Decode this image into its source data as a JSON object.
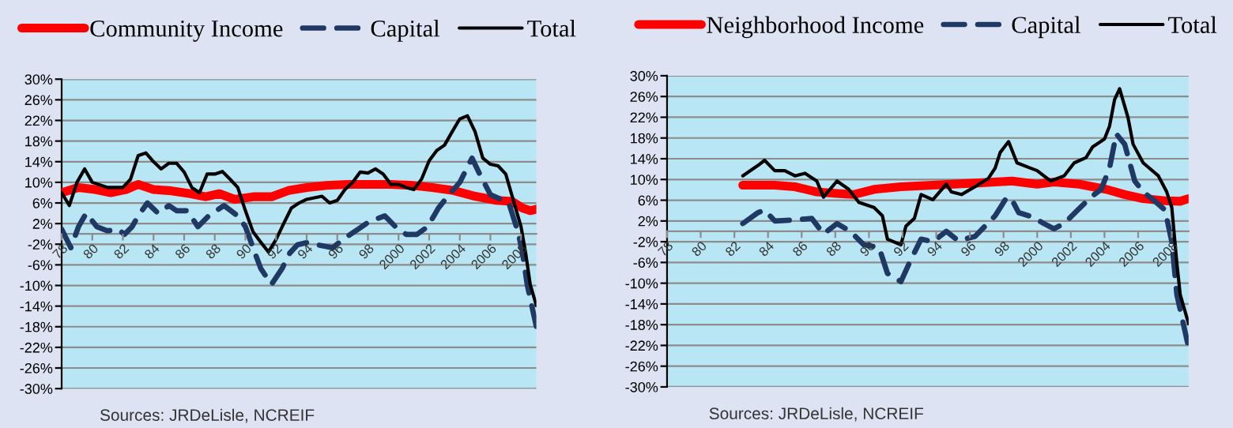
{
  "chart_data": [
    {
      "type": "line",
      "legend": "top",
      "grid": "y",
      "xlim": [
        1978,
        2009
      ],
      "ylim": [
        -30,
        30
      ],
      "xticks": [
        {
          "value": 1978,
          "label": "78"
        },
        {
          "value": 1980,
          "label": "80"
        },
        {
          "value": 1982,
          "label": "82"
        },
        {
          "value": 1984,
          "label": "84"
        },
        {
          "value": 1986,
          "label": "86"
        },
        {
          "value": 1988,
          "label": "88"
        },
        {
          "value": 1990,
          "label": "90"
        },
        {
          "value": 1992,
          "label": "92"
        },
        {
          "value": 1994,
          "label": "94"
        },
        {
          "value": 1996,
          "label": "96"
        },
        {
          "value": 1998,
          "label": "98"
        },
        2000,
        2002,
        2004,
        2006,
        2008
      ],
      "yticks": [
        {
          "value": 30,
          "label": "30%"
        },
        {
          "value": 26,
          "label": "26%"
        },
        {
          "value": 22,
          "label": "22%"
        },
        {
          "value": 18,
          "label": "18%"
        },
        {
          "value": 14,
          "label": "14%"
        },
        {
          "value": 10,
          "label": "10%"
        },
        {
          "value": 6,
          "label": "6%"
        },
        {
          "value": 2,
          "label": "2%"
        },
        {
          "value": -2,
          "label": "-2%"
        },
        {
          "value": -6,
          "label": "-6%"
        },
        {
          "value": -10,
          "label": "-10%"
        },
        {
          "value": -14,
          "label": "-14%"
        },
        {
          "value": -18,
          "label": "-18%"
        },
        {
          "value": -22,
          "label": "-22%"
        },
        {
          "value": -26,
          "label": "-26%"
        },
        {
          "value": -30,
          "label": "-30%"
        }
      ],
      "annotations": [
        "Sources: JRDeLisle, NCREIF"
      ],
      "series": [
        {
          "name": "Community Income",
          "color": "#ff0000",
          "line_style": "solid",
          "x": [
            1978.0,
            1979.1,
            1980.2,
            1981.2,
            1982.2,
            1983.0,
            1984.0,
            1985.0,
            1986.4,
            1987.4,
            1988.3,
            1989.3,
            1990.5,
            1991.7,
            1992.8,
            1994.0,
            1995.3,
            1996.7,
            1998.1,
            1999.5,
            2000.9,
            2002.2,
            2003.6,
            2005.0,
            2006.4,
            2007.4,
            2008.1,
            2008.6,
            2009.0
          ],
          "values": [
            8,
            9,
            8.6,
            8,
            8.6,
            9.6,
            8.6,
            8.4,
            7.8,
            7.2,
            7.8,
            6.7,
            7.2,
            7.2,
            8.4,
            9,
            9.4,
            9.6,
            9.6,
            9.6,
            9.4,
            9,
            8.4,
            7.3,
            6.5,
            6.3,
            5,
            4.5,
            4.8
          ]
        },
        {
          "name": "Capital",
          "color": "#1f3864",
          "line_style": "dashed",
          "x": [
            1978.0,
            1978.6,
            1979.1,
            1979.6,
            1980.3,
            1981.0,
            1981.7,
            1982.1,
            1982.6,
            1983.0,
            1983.6,
            1984.3,
            1985.0,
            1985.5,
            1986.2,
            1986.9,
            1987.6,
            1988.6,
            1989.5,
            1990.0,
            1990.5,
            1991.0,
            1991.7,
            1992.4,
            1992.9,
            1993.4,
            1994.1,
            1994.7,
            1995.7,
            1996.4,
            1997.4,
            1998.1,
            1999.1,
            1999.8,
            2000.5,
            2001.2,
            2001.9,
            2002.6,
            2003.3,
            2004.0,
            2004.8,
            2005.3,
            2006.0,
            2006.7,
            2007.2,
            2007.8,
            2008.1,
            2008.4,
            2009.0
          ],
          "values": [
            0.9,
            -2.7,
            1.4,
            4,
            1.4,
            0.6,
            0.9,
            -0.1,
            1.4,
            3.5,
            6,
            4,
            5.5,
            4.5,
            4.5,
            1.4,
            3.5,
            5.5,
            3.5,
            1.4,
            -2.7,
            -6.7,
            -9.8,
            -6.7,
            -3.7,
            -2.1,
            -1.6,
            -2.1,
            -2.7,
            -1,
            1,
            2.4,
            3.5,
            1.4,
            -0.1,
            -0.1,
            1.4,
            5,
            7.6,
            10,
            14.7,
            11.6,
            7.6,
            6.7,
            6,
            0.4,
            -3.7,
            -9.8,
            -18
          ]
        },
        {
          "name": "Total",
          "color": "#000000",
          "line_style": "solid",
          "x": [
            1978.0,
            1978.5,
            1979.0,
            1979.5,
            1980.0,
            1981.0,
            1982.0,
            1982.5,
            1983.0,
            1983.5,
            1984.0,
            1984.5,
            1985.0,
            1985.5,
            1986.0,
            1986.5,
            1987.0,
            1987.5,
            1988.0,
            1988.5,
            1989.0,
            1989.5,
            1990.0,
            1990.5,
            1991.0,
            1991.5,
            1992.0,
            1992.5,
            1993.0,
            1993.5,
            1994.0,
            1994.5,
            1995.0,
            1995.5,
            1996.0,
            1996.5,
            1997.0,
            1997.5,
            1998.0,
            1998.5,
            1999.0,
            1999.5,
            2000.0,
            2000.5,
            2001.0,
            2001.5,
            2002.0,
            2002.5,
            2003.0,
            2003.5,
            2004.0,
            2004.5,
            2005.0,
            2005.5,
            2006.0,
            2006.5,
            2007.0,
            2007.5,
            2008.0,
            2008.3,
            2008.6,
            2009.0
          ],
          "values": [
            8,
            5.5,
            10,
            12.6,
            10,
            9,
            9,
            10.6,
            15.2,
            15.7,
            14,
            12.6,
            13.7,
            13.7,
            12,
            9,
            8,
            11.6,
            11.6,
            12.1,
            10.6,
            9,
            4.5,
            0.4,
            -1.6,
            -3.5,
            -1.1,
            2,
            5,
            6,
            6.7,
            7,
            7.3,
            6,
            6.5,
            8.6,
            10,
            12,
            11.8,
            12.6,
            11.6,
            9.6,
            9.6,
            9,
            8.6,
            10.6,
            14.2,
            16.2,
            17.2,
            19.8,
            22.3,
            22.9,
            19.8,
            14.7,
            13.5,
            13.2,
            11.6,
            6.5,
            1.4,
            -3.7,
            -9.8,
            -13.9
          ]
        }
      ]
    },
    {
      "type": "line",
      "legend": "top",
      "grid": "y",
      "xlim": [
        1978,
        2009
      ],
      "ylim": [
        -30,
        30
      ],
      "xticks": [
        {
          "value": 1978,
          "label": "78"
        },
        {
          "value": 1980,
          "label": "80"
        },
        {
          "value": 1982,
          "label": "82"
        },
        {
          "value": 1984,
          "label": "84"
        },
        {
          "value": 1986,
          "label": "86"
        },
        {
          "value": 1988,
          "label": "88"
        },
        {
          "value": 1990,
          "label": "90"
        },
        {
          "value": 1992,
          "label": "92"
        },
        {
          "value": 1994,
          "label": "94"
        },
        {
          "value": 1996,
          "label": "96"
        },
        {
          "value": 1998,
          "label": "98"
        },
        2000,
        2002,
        2004,
        2006,
        2008
      ],
      "yticks": [
        {
          "value": 30,
          "label": "30%"
        },
        {
          "value": 26,
          "label": "26%"
        },
        {
          "value": 22,
          "label": "22%"
        },
        {
          "value": 18,
          "label": "18%"
        },
        {
          "value": 14,
          "label": "14%"
        },
        {
          "value": 10,
          "label": "10%"
        },
        {
          "value": 6,
          "label": "6%"
        },
        {
          "value": 2,
          "label": "2%"
        },
        {
          "value": -2,
          "label": "-2%"
        },
        {
          "value": -6,
          "label": "-6%"
        },
        {
          "value": -10,
          "label": "-10%"
        },
        {
          "value": -14,
          "label": "-14%"
        },
        {
          "value": -18,
          "label": "-18%"
        },
        {
          "value": -22,
          "label": "-22%"
        },
        {
          "value": -26,
          "label": "-26%"
        },
        {
          "value": -30,
          "label": "-30%"
        }
      ],
      "annotations": [
        "Sources: JRDeLisle, NCREIF"
      ],
      "series": [
        {
          "name": "Neighborhood Income",
          "color": "#ff0000",
          "line_style": "solid",
          "x": [
            1982.5,
            1984.4,
            1985.6,
            1986.9,
            1988.1,
            1989.1,
            1990.3,
            1991.9,
            1993.8,
            1996.3,
            1998.5,
            2000.0,
            2001.0,
            2002.5,
            2004.1,
            2005.2,
            2006.3,
            2007.6,
            2008.5,
            2009.0
          ],
          "values": [
            8.9,
            8.9,
            8.6,
            7.6,
            7.3,
            7.1,
            8.1,
            8.6,
            8.9,
            9.3,
            9.7,
            9.1,
            9.5,
            9.1,
            8.1,
            7.1,
            6.3,
            5.9,
            5.8,
            6.3
          ]
        },
        {
          "name": "Capital",
          "color": "#1f3864",
          "line_style": "dashed",
          "x": [
            1982.5,
            1983.4,
            1983.8,
            1984.4,
            1985.6,
            1986.6,
            1987.3,
            1988.1,
            1988.9,
            1989.7,
            1990.6,
            1991.1,
            1991.9,
            1992.4,
            1993.1,
            1993.8,
            1994.6,
            1995.3,
            1996.3,
            1996.9,
            1997.5,
            1998.2,
            1998.5,
            1998.9,
            1999.7,
            2000.4,
            2001.0,
            2001.6,
            2002.4,
            2003.2,
            2003.8,
            2004.3,
            2004.7,
            2005.2,
            2005.8,
            2006.3,
            2006.9,
            2007.6,
            2008.0,
            2008.3,
            2009.0
          ],
          "values": [
            1.5,
            3.6,
            4.1,
            2,
            2.2,
            2.5,
            -0.5,
            1.5,
            0,
            -2.6,
            -3.1,
            -8.1,
            -9.7,
            -6.1,
            -1.5,
            -2,
            0,
            -1.8,
            -1,
            1,
            3,
            6.6,
            6.1,
            3.6,
            2.8,
            1.5,
            0.5,
            1.5,
            4.1,
            6.6,
            8.1,
            12.2,
            18.8,
            16.8,
            9.7,
            7.6,
            6.1,
            4.1,
            -2,
            -12.2,
            -22.4
          ]
        },
        {
          "name": "Total",
          "color": "#000000",
          "line_style": "solid",
          "x": [
            1982.5,
            1983.4,
            1983.8,
            1984.4,
            1985.0,
            1985.6,
            1986.2,
            1986.9,
            1987.3,
            1988.1,
            1988.8,
            1989.4,
            1990.3,
            1990.8,
            1991.1,
            1991.9,
            1992.2,
            1992.7,
            1993.1,
            1993.8,
            1994.6,
            1994.9,
            1995.5,
            1996.3,
            1997.1,
            1997.5,
            1997.8,
            1998.3,
            1998.8,
            1999.6,
            2000.0,
            2000.8,
            2001.6,
            2002.2,
            2002.9,
            2003.3,
            2004.0,
            2004.3,
            2004.6,
            2004.9,
            2005.4,
            2005.7,
            2006.3,
            2007.2,
            2007.7,
            2008.0,
            2008.3,
            2008.5,
            2009.0
          ],
          "values": [
            10.7,
            12.7,
            13.7,
            11.7,
            11.7,
            10.7,
            11.2,
            9.7,
            6.6,
            9.7,
            8.1,
            5.6,
            4.6,
            3,
            -1.5,
            -2.6,
            1,
            2.5,
            7.1,
            6.1,
            9.1,
            7.6,
            7.1,
            8.6,
            10.2,
            12.2,
            15.2,
            17.3,
            13.2,
            12.2,
            11.7,
            9.7,
            10.7,
            13.2,
            14.2,
            16.3,
            17.8,
            20.3,
            25.4,
            27.5,
            21.9,
            16.8,
            13.2,
            10.7,
            7.6,
            4.6,
            -6.1,
            -12.2,
            -17.8
          ]
        }
      ]
    }
  ]
}
